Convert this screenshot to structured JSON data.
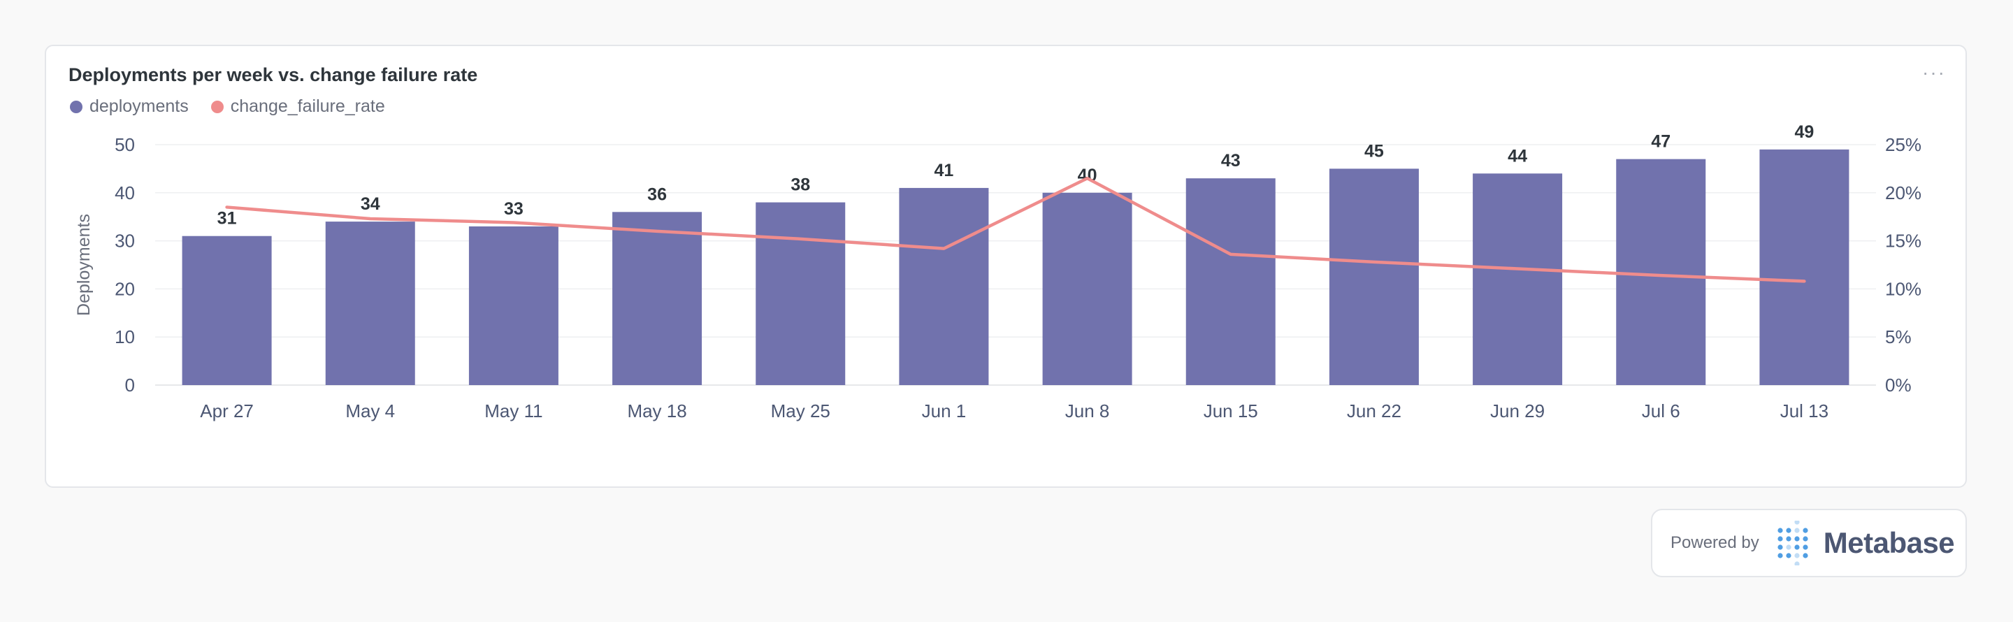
{
  "card": {
    "title": "Deployments per week vs. change failure rate",
    "menu_label": "···"
  },
  "legend": [
    {
      "label": "deployments",
      "color": "#7172ad"
    },
    {
      "label": "change_failure_rate",
      "color": "#ef8c8c"
    }
  ],
  "chart_data": {
    "type": "bar",
    "title": "Deployments per week vs. change failure rate",
    "categories": [
      "Apr 27",
      "May 4",
      "May 11",
      "May 18",
      "May 25",
      "Jun 1",
      "Jun 8",
      "Jun 15",
      "Jun 22",
      "Jun 29",
      "Jul 6",
      "Jul 13"
    ],
    "series": [
      {
        "name": "deployments",
        "type": "bar",
        "axis": "left",
        "color": "#7172ad",
        "values": [
          31,
          34,
          33,
          36,
          38,
          41,
          40,
          43,
          45,
          44,
          47,
          49
        ]
      },
      {
        "name": "change_failure_rate",
        "type": "line",
        "axis": "right",
        "color": "#ef8c8c",
        "values": [
          18.5,
          17.3,
          16.9,
          16.0,
          15.2,
          14.2,
          21.5,
          13.6,
          12.8,
          12.1,
          11.4,
          10.8
        ]
      }
    ],
    "ylabel": "Deployments",
    "xlabel": "",
    "ylim": [
      0,
      50
    ],
    "y_ticks": [
      "0",
      "10",
      "20",
      "30",
      "40",
      "50"
    ],
    "y2lim": [
      0,
      25
    ],
    "y2_ticks": [
      "0%",
      "5%",
      "10%",
      "15%",
      "20%",
      "25%"
    ],
    "grid": true,
    "legend_position": "top-left"
  },
  "footer": {
    "powered_by": "Powered by",
    "brand": "Metabase"
  }
}
